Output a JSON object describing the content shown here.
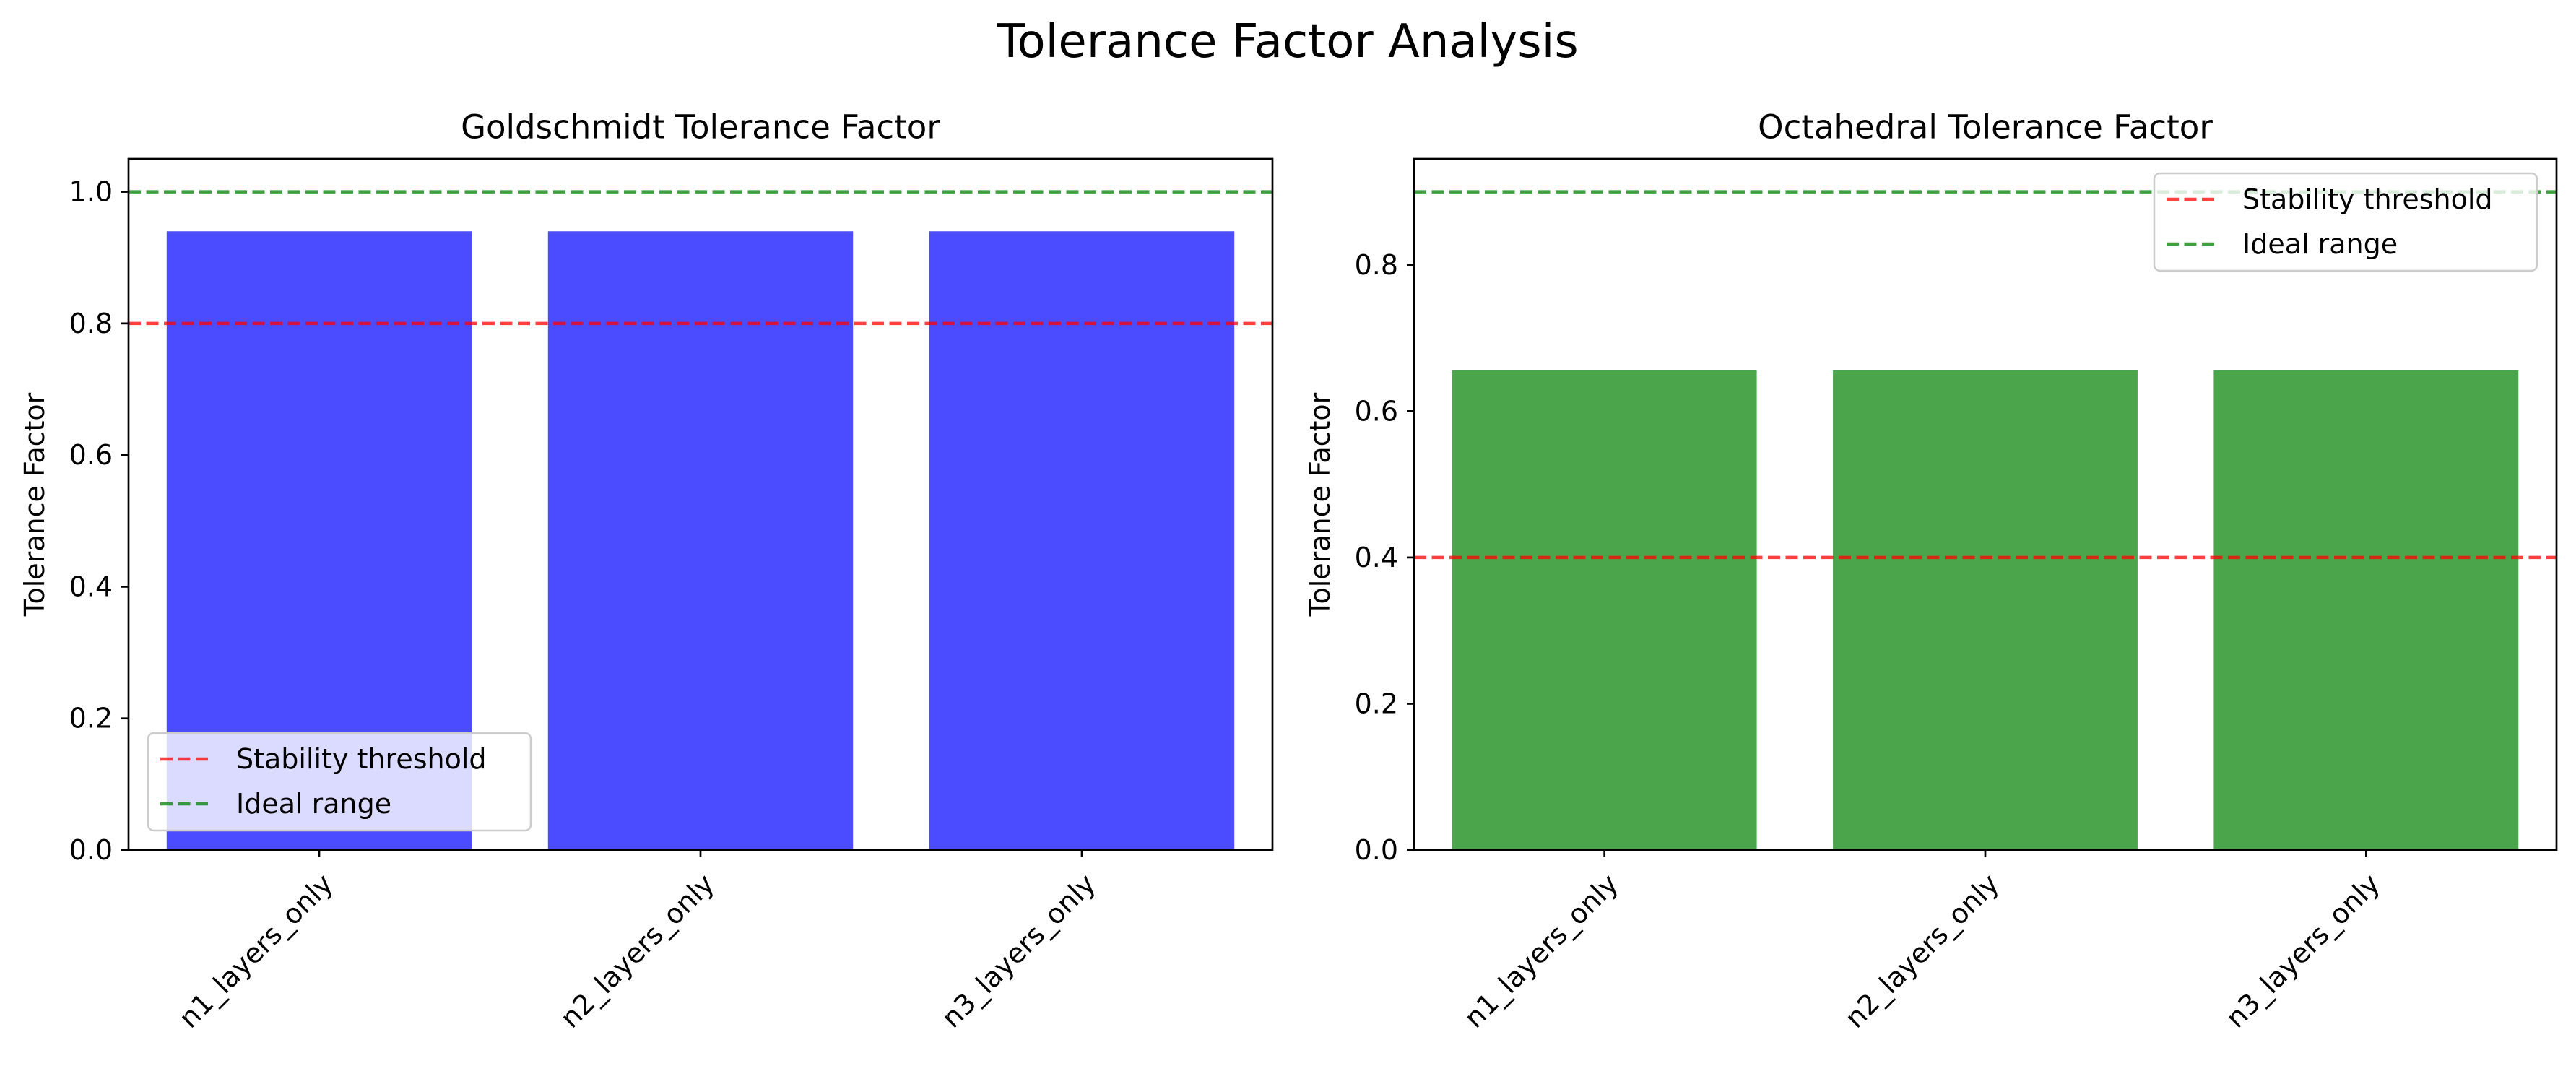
{
  "figure_title": "Tolerance Factor Analysis",
  "colors": {
    "threshold_line": "#ff0000",
    "ideal_line": "#008000"
  },
  "chart_data": [
    {
      "type": "bar",
      "title": "Goldschmidt Tolerance Factor",
      "xlabel": "",
      "ylabel": "Tolerance Factor",
      "categories": [
        "n1_layers_only",
        "n2_layers_only",
        "n3_layers_only"
      ],
      "values": [
        0.94,
        0.94,
        0.94
      ],
      "bar_color": "#4b4bff",
      "ylim": [
        0,
        1.05
      ],
      "yticks": [
        0.0,
        0.2,
        0.4,
        0.6,
        0.8,
        1.0
      ],
      "ytick_labels": [
        "0.0",
        "0.2",
        "0.4",
        "0.6",
        "0.8",
        "1.0"
      ],
      "grid": false,
      "reference_lines": [
        {
          "name": "Stability threshold",
          "y": 0.8,
          "color": "#ff0000",
          "style": "dashed"
        },
        {
          "name": "Ideal range",
          "y": 1.0,
          "color": "#008000",
          "style": "dashed"
        }
      ],
      "legend": {
        "position": "lower-left",
        "entries": [
          "Stability threshold",
          "Ideal range"
        ]
      }
    },
    {
      "type": "bar",
      "title": "Octahedral Tolerance Factor",
      "xlabel": "",
      "ylabel": "Tolerance Factor",
      "categories": [
        "n1_layers_only",
        "n2_layers_only",
        "n3_layers_only"
      ],
      "values": [
        0.656,
        0.656,
        0.656
      ],
      "bar_color": "#4ba64b",
      "ylim": [
        0,
        0.945
      ],
      "yticks": [
        0.0,
        0.2,
        0.4,
        0.6,
        0.8
      ],
      "ytick_labels": [
        "0.0",
        "0.2",
        "0.4",
        "0.6",
        "0.8"
      ],
      "grid": false,
      "reference_lines": [
        {
          "name": "Stability threshold",
          "y": 0.4,
          "color": "#ff0000",
          "style": "dashed"
        },
        {
          "name": "Ideal range",
          "y": 0.9,
          "color": "#008000",
          "style": "dashed"
        }
      ],
      "legend": {
        "position": "upper-right",
        "entries": [
          "Stability threshold",
          "Ideal range"
        ]
      }
    }
  ]
}
